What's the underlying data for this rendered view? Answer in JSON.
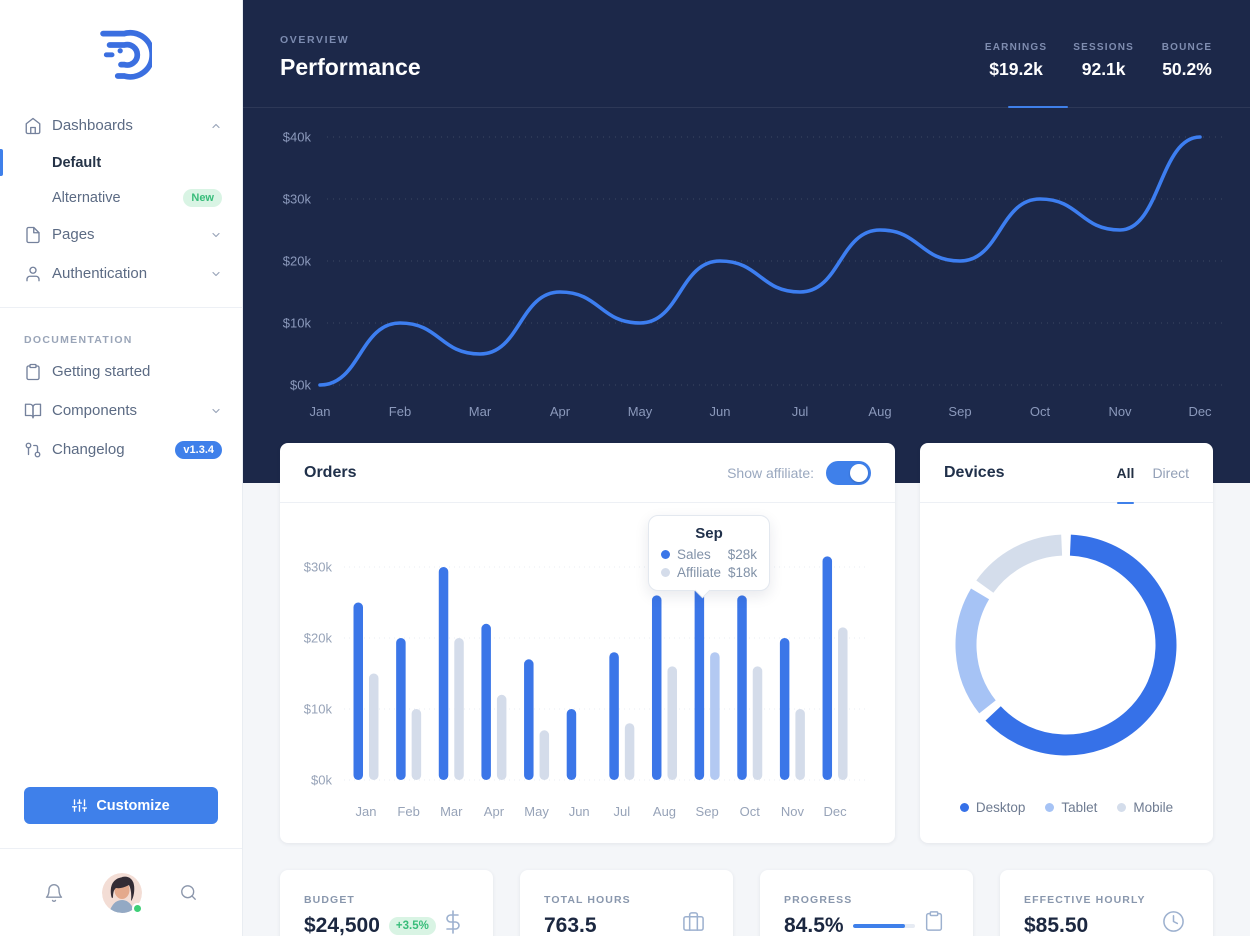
{
  "colors": {
    "accent": "#3f80ea",
    "navy": "#1c2849",
    "line": "#3d7ef0",
    "bar_sales": "#3b76e8",
    "bar_affiliate": "#d4dcea",
    "bar_affiliate_highlight": "#b3c9f2",
    "donut": [
      "#3671e8",
      "#a6c3f5",
      "#d4ddeb"
    ],
    "badge_green_bg": "#d9f4e4",
    "badge_green_text": "#38bd7a"
  },
  "sidebar": {
    "items": [
      {
        "label": "Dashboards",
        "icon": "home-icon",
        "state": "expanded"
      },
      {
        "label": "Default",
        "state": "active"
      },
      {
        "label": "Alternative",
        "badge": "New"
      },
      {
        "label": "Pages",
        "icon": "file-icon",
        "state": "collapsed"
      },
      {
        "label": "Authentication",
        "icon": "user-icon",
        "state": "collapsed"
      }
    ],
    "section_label": "DOCUMENTATION",
    "doc_items": [
      {
        "label": "Getting started",
        "icon": "clipboard-icon"
      },
      {
        "label": "Components",
        "icon": "book-open-icon",
        "state": "collapsed"
      },
      {
        "label": "Changelog",
        "icon": "git-branch-icon",
        "badge": "v1.3.4"
      }
    ],
    "customize_label": "Customize"
  },
  "hero": {
    "eyebrow": "OVERVIEW",
    "title": "Performance",
    "stats": [
      {
        "label": "EARNINGS",
        "value": "$19.2k",
        "active": true
      },
      {
        "label": "SESSIONS",
        "value": "92.1k"
      },
      {
        "label": "BOUNCE",
        "value": "50.2%"
      }
    ]
  },
  "orders": {
    "title": "Orders",
    "toggle_label": "Show affiliate:",
    "toggle_on": true,
    "tooltip": {
      "title": "Sep",
      "rows": [
        {
          "series": "Sales",
          "value": "$28k"
        },
        {
          "series": "Affiliate",
          "value": "$18k"
        }
      ]
    }
  },
  "devices": {
    "title": "Devices",
    "tabs": [
      {
        "label": "All",
        "active": true
      },
      {
        "label": "Direct",
        "active": false
      }
    ],
    "legend": [
      {
        "label": "Desktop"
      },
      {
        "label": "Tablet"
      },
      {
        "label": "Mobile"
      }
    ]
  },
  "kpis": [
    {
      "label": "BUDGET",
      "value": "$24,500",
      "badge": "+3.5%",
      "icon": "dollar-icon"
    },
    {
      "label": "TOTAL HOURS",
      "value": "763.5",
      "icon": "briefcase-icon"
    },
    {
      "label": "PROGRESS",
      "value": "84.5%",
      "progress_percent": 84.5,
      "icon": "clipboard-icon"
    },
    {
      "label": "EFFECTIVE HOURLY",
      "value": "$85.50",
      "icon": "clock-icon"
    }
  ],
  "chart_data": [
    {
      "type": "line",
      "title": "Performance (Earnings)",
      "x": [
        "Jan",
        "Feb",
        "Mar",
        "Apr",
        "May",
        "Jun",
        "Jul",
        "Aug",
        "Sep",
        "Oct",
        "Nov",
        "Dec"
      ],
      "series": [
        {
          "name": "Earnings",
          "values": [
            0,
            10,
            5,
            15,
            10,
            20,
            15,
            25,
            20,
            30,
            25,
            40
          ]
        }
      ],
      "ylim": [
        0,
        40
      ],
      "yticks": [
        "$0k",
        "$10k",
        "$20k",
        "$30k",
        "$40k"
      ],
      "grid": "dotted",
      "legend_position": "none"
    },
    {
      "type": "bar",
      "title": "Orders",
      "categories": [
        "Jan",
        "Feb",
        "Mar",
        "Apr",
        "May",
        "Jun",
        "Jul",
        "Aug",
        "Sep",
        "Oct",
        "Nov",
        "Dec"
      ],
      "series": [
        {
          "name": "Sales",
          "values": [
            25,
            20,
            30,
            22,
            17,
            10,
            18,
            26,
            28,
            26,
            20,
            31.5
          ]
        },
        {
          "name": "Affiliate",
          "values": [
            15,
            10,
            20,
            12,
            7,
            0,
            8,
            16,
            18,
            16,
            10,
            21.5
          ]
        }
      ],
      "ylim": [
        0,
        33
      ],
      "yticks": [
        "$0k",
        "$10k",
        "$20k",
        "$30k"
      ],
      "grid": "dotted",
      "tooltip_month": "Sep",
      "legend_position": "none"
    },
    {
      "type": "pie",
      "title": "Devices",
      "labels": [
        "Desktop",
        "Tablet",
        "Mobile"
      ],
      "values": [
        65,
        20,
        15
      ],
      "donut": true,
      "legend_position": "bottom"
    }
  ]
}
